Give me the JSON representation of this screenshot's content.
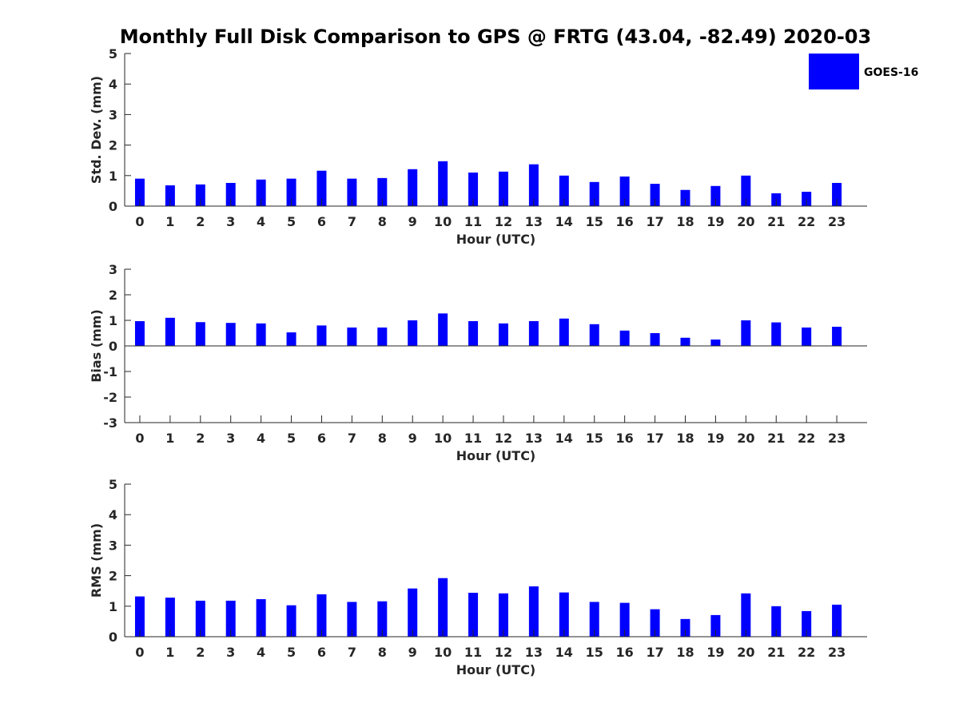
{
  "title": "Monthly Full Disk Comparison to GPS @ FRTG (43.04, -82.49) 2020-03",
  "legend": {
    "label": "GOES-16",
    "color": "#0000ff",
    "placement": "top-right"
  },
  "chart_data": [
    {
      "type": "bar",
      "categories": [
        "0",
        "1",
        "2",
        "3",
        "4",
        "5",
        "6",
        "7",
        "8",
        "9",
        "10",
        "11",
        "12",
        "13",
        "14",
        "15",
        "16",
        "17",
        "18",
        "19",
        "20",
        "21",
        "22",
        "23"
      ],
      "series": [
        {
          "name": "GOES-16",
          "color": "#0000ff",
          "values": [
            0.9,
            0.68,
            0.71,
            0.76,
            0.87,
            0.9,
            1.16,
            0.9,
            0.92,
            1.21,
            1.47,
            1.1,
            1.13,
            1.37,
            1.0,
            0.79,
            0.97,
            0.73,
            0.53,
            0.66,
            1.0,
            0.42,
            0.47,
            0.76
          ]
        }
      ],
      "xlabel": "Hour (UTC)",
      "ylabel": "Std. Dev. (mm)",
      "ylim": [
        0,
        5
      ],
      "yticks": [
        "0",
        "1",
        "2",
        "3",
        "4",
        "5"
      ],
      "grid": false
    },
    {
      "type": "bar",
      "categories": [
        "0",
        "1",
        "2",
        "3",
        "4",
        "5",
        "6",
        "7",
        "8",
        "9",
        "10",
        "11",
        "12",
        "13",
        "14",
        "15",
        "16",
        "17",
        "18",
        "19",
        "20",
        "21",
        "22",
        "23"
      ],
      "series": [
        {
          "name": "GOES-16",
          "color": "#0000ff",
          "values": [
            0.97,
            1.1,
            0.93,
            0.9,
            0.88,
            0.53,
            0.8,
            0.72,
            0.72,
            1.0,
            1.27,
            0.97,
            0.88,
            0.97,
            1.07,
            0.85,
            0.6,
            0.5,
            0.32,
            0.25,
            1.0,
            0.92,
            0.72,
            0.75
          ]
        }
      ],
      "xlabel": "Hour (UTC)",
      "ylabel": "Bias (mm)",
      "ylim": [
        -3,
        3
      ],
      "yticks": [
        "-3",
        "-2",
        "-1",
        "0",
        "1",
        "2",
        "3"
      ],
      "grid": false
    },
    {
      "type": "bar",
      "categories": [
        "0",
        "1",
        "2",
        "3",
        "4",
        "5",
        "6",
        "7",
        "8",
        "9",
        "10",
        "11",
        "12",
        "13",
        "14",
        "15",
        "16",
        "17",
        "18",
        "19",
        "20",
        "21",
        "22",
        "23"
      ],
      "series": [
        {
          "name": "GOES-16",
          "color": "#0000ff",
          "values": [
            1.32,
            1.28,
            1.18,
            1.18,
            1.23,
            1.03,
            1.39,
            1.14,
            1.16,
            1.58,
            1.92,
            1.44,
            1.42,
            1.65,
            1.45,
            1.14,
            1.11,
            0.9,
            0.58,
            0.71,
            1.42,
            1.0,
            0.84,
            1.05
          ]
        }
      ],
      "xlabel": "Hour (UTC)",
      "ylabel": "RMS (mm)",
      "ylim": [
        0,
        5
      ],
      "yticks": [
        "0",
        "1",
        "2",
        "3",
        "4",
        "5"
      ],
      "grid": false
    }
  ]
}
